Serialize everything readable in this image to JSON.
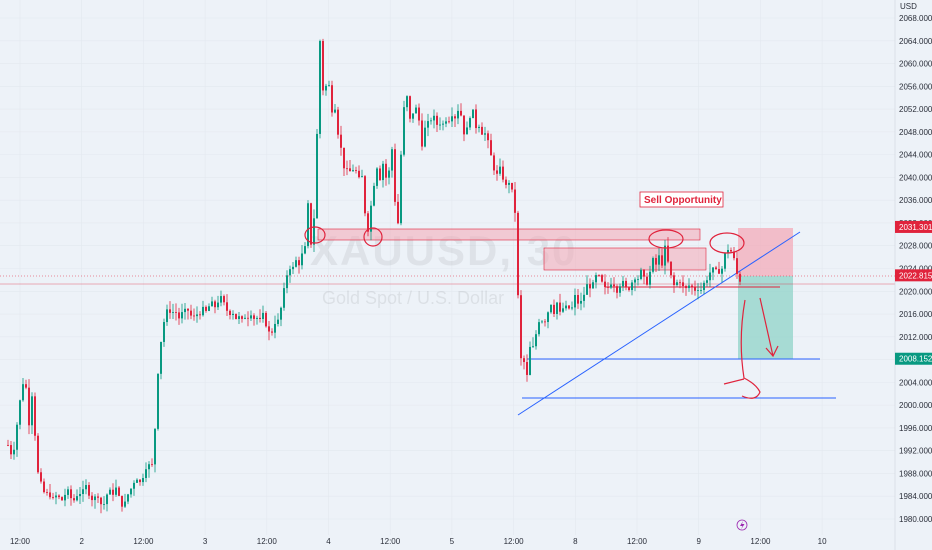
{
  "chart_data": {
    "type": "candlestick",
    "symbol": "XAUUSD, 30",
    "description": "Gold Spot / U.S. Dollar",
    "currency": "USD",
    "ylim": [
      1978,
      2069
    ],
    "y_ticks": [
      1980,
      1984,
      1988,
      1992,
      1996,
      2000,
      2004,
      2008,
      2012,
      2016,
      2020,
      2024,
      2028,
      2032,
      2036,
      2040,
      2044,
      2048,
      2052,
      2056,
      2060,
      2064,
      2068
    ],
    "y_tick_labels": [
      "1980.000",
      "1984.000",
      "1988.000",
      "1992.000",
      "1996.000",
      "2000.000",
      "2004.000",
      "2008.000",
      "2012.000",
      "2016.000",
      "2020.000",
      "2024.000",
      "2028.000",
      "2032.000",
      "2036.000",
      "2040.000",
      "2044.000",
      "2048.000",
      "2052.000",
      "2056.000",
      "2060.000",
      "2064.000",
      "2068.000"
    ],
    "x_tick_labels": [
      "12:00",
      "2",
      "12:00",
      "3",
      "12:00",
      "4",
      "12:00",
      "5",
      "12:00",
      "8",
      "12:00",
      "9",
      "12:00",
      "10"
    ],
    "price_badges": [
      {
        "label": "2031.301",
        "value": 2031.3,
        "color": "#e0233c"
      },
      {
        "label": "2022.815",
        "value": 2022.8,
        "color": "#e0233c"
      },
      {
        "label": "2008.152",
        "value": 2008.15,
        "color": "#089981"
      }
    ],
    "annotation": "Sell Opportunity",
    "bull_color": "#089981",
    "bear_color": "#e0233c",
    "zone_color": "#f4a7b5",
    "tp_color": "#8fd3c8",
    "line_color": "#2962ff",
    "path": [
      [
        0,
        1983
      ],
      [
        3,
        1986
      ],
      [
        6,
        1989
      ],
      [
        8,
        1993
      ],
      [
        10,
        1991
      ],
      [
        12,
        1995
      ],
      [
        15,
        1990
      ],
      [
        18,
        1994
      ],
      [
        21,
        1998
      ],
      [
        24,
        2002
      ],
      [
        26,
        2004
      ],
      [
        28,
        2006
      ],
      [
        30,
        2000
      ],
      [
        32,
        1997
      ],
      [
        34,
        2004
      ],
      [
        36,
        2000
      ],
      [
        38,
        1995
      ],
      [
        40,
        1990
      ],
      [
        42,
        1986
      ],
      [
        44,
        1986
      ],
      [
        46,
        1985
      ],
      [
        49,
        1984
      ],
      [
        52,
        1985
      ],
      [
        55,
        1983
      ],
      [
        58,
        1984
      ],
      [
        61,
        1984
      ],
      [
        64,
        1983
      ],
      [
        67,
        1984
      ],
      [
        70,
        1985
      ],
      [
        73,
        1984
      ],
      [
        76,
        1983
      ],
      [
        79,
        1984
      ],
      [
        82,
        1985
      ],
      [
        85,
        1984
      ],
      [
        88,
        1986
      ],
      [
        91,
        1985
      ],
      [
        94,
        1984
      ],
      [
        97,
        1983
      ],
      [
        100,
        1985
      ],
      [
        103,
        1983
      ],
      [
        106,
        1982
      ],
      [
        109,
        1984
      ],
      [
        112,
        1985
      ],
      [
        115,
        1984
      ],
      [
        118,
        1986
      ],
      [
        121,
        1984
      ],
      [
        124,
        1983
      ],
      [
        127,
        1982
      ],
      [
        130,
        1984
      ],
      [
        133,
        1985
      ],
      [
        136,
        1986
      ],
      [
        139,
        1988
      ],
      [
        142,
        1986
      ],
      [
        145,
        1987
      ],
      [
        148,
        1989
      ],
      [
        151,
        1990
      ],
      [
        154,
        1988
      ],
      [
        157,
        1992
      ],
      [
        159,
        2000
      ],
      [
        161,
        2006
      ],
      [
        163,
        2010
      ],
      [
        166,
        2014
      ],
      [
        169,
        2016
      ],
      [
        172,
        2017
      ],
      [
        175,
        2016
      ],
      [
        178,
        2017
      ],
      [
        181,
        2015
      ],
      [
        184,
        2016
      ],
      [
        187,
        2016
      ],
      [
        190,
        2017
      ],
      [
        193,
        2016
      ],
      [
        196,
        2015
      ],
      [
        199,
        2016
      ],
      [
        202,
        2016
      ],
      [
        205,
        2017
      ],
      [
        208,
        2016
      ],
      [
        211,
        2017
      ],
      [
        214,
        2018
      ],
      [
        217,
        2017
      ],
      [
        220,
        2018
      ],
      [
        223,
        2019
      ],
      [
        226,
        2018
      ],
      [
        229,
        2017
      ],
      [
        232,
        2016
      ],
      [
        235,
        2017
      ],
      [
        238,
        2015
      ],
      [
        241,
        2016
      ],
      [
        244,
        2014
      ],
      [
        247,
        2016
      ],
      [
        250,
        2015
      ],
      [
        253,
        2017
      ],
      [
        256,
        2015
      ],
      [
        259,
        2016
      ],
      [
        262,
        2014
      ],
      [
        265,
        2016
      ],
      [
        268,
        2015
      ],
      [
        271,
        2013
      ],
      [
        274,
        2012
      ],
      [
        277,
        2015
      ],
      [
        280,
        2014
      ],
      [
        283,
        2016
      ],
      [
        286,
        2019
      ],
      [
        289,
        2022
      ],
      [
        292,
        2025
      ],
      [
        295,
        2023
      ],
      [
        298,
        2026
      ],
      [
        301,
        2024
      ],
      [
        304,
        2027
      ],
      [
        307,
        2025
      ],
      [
        309,
        2030
      ],
      [
        311,
        2035
      ],
      [
        313,
        2031
      ],
      [
        315,
        2026
      ],
      [
        317,
        2033
      ],
      [
        319,
        2040
      ],
      [
        321,
        2055
      ],
      [
        323,
        2064
      ],
      [
        325,
        2058
      ],
      [
        327,
        2053
      ],
      [
        329,
        2056
      ],
      [
        331,
        2058
      ],
      [
        333,
        2054
      ],
      [
        335,
        2052
      ],
      [
        337,
        2055
      ],
      [
        339,
        2050
      ],
      [
        341,
        2048
      ],
      [
        343,
        2044
      ],
      [
        345,
        2046
      ],
      [
        347,
        2042
      ],
      [
        349,
        2039
      ],
      [
        351,
        2043
      ],
      [
        353,
        2041
      ],
      [
        355,
        2043
      ],
      [
        357,
        2040
      ],
      [
        359,
        2041
      ],
      [
        361,
        2037
      ],
      [
        363,
        2042
      ],
      [
        365,
        2040
      ],
      [
        367,
        2035
      ],
      [
        369,
        2033
      ],
      [
        371,
        2031
      ],
      [
        373,
        2034
      ],
      [
        375,
        2036
      ],
      [
        377,
        2039
      ],
      [
        379,
        2041
      ],
      [
        381,
        2043
      ],
      [
        383,
        2040
      ],
      [
        385,
        2044
      ],
      [
        387,
        2041
      ],
      [
        389,
        2040
      ],
      [
        391,
        2042
      ],
      [
        393,
        2040
      ],
      [
        395,
        2045
      ],
      [
        397,
        2038
      ],
      [
        399,
        2034
      ],
      [
        401,
        2032
      ],
      [
        403,
        2040
      ],
      [
        405,
        2048
      ],
      [
        407,
        2052
      ],
      [
        409,
        2056
      ],
      [
        411,
        2052
      ],
      [
        413,
        2050
      ],
      [
        415,
        2053
      ],
      [
        417,
        2050
      ],
      [
        419,
        2052
      ],
      [
        421,
        2049
      ],
      [
        423,
        2051
      ],
      [
        425,
        2046
      ],
      [
        427,
        2047
      ],
      [
        429,
        2050
      ],
      [
        432,
        2049
      ],
      [
        435,
        2051
      ],
      [
        438,
        2050
      ],
      [
        441,
        2049
      ],
      [
        444,
        2050
      ],
      [
        447,
        2049
      ],
      [
        450,
        2051
      ],
      [
        453,
        2050
      ],
      [
        456,
        2052
      ],
      [
        459,
        2050
      ],
      [
        462,
        2053
      ],
      [
        465,
        2050
      ],
      [
        468,
        2047
      ],
      [
        471,
        2049
      ],
      [
        474,
        2052
      ],
      [
        477,
        2051
      ],
      [
        480,
        2048
      ],
      [
        483,
        2050
      ],
      [
        486,
        2047
      ],
      [
        489,
        2048
      ],
      [
        492,
        2045
      ],
      [
        495,
        2043
      ],
      [
        498,
        2041
      ],
      [
        501,
        2040
      ],
      [
        504,
        2042
      ],
      [
        507,
        2039
      ],
      [
        510,
        2038
      ],
      [
        513,
        2040
      ],
      [
        516,
        2036
      ],
      [
        518,
        2034
      ],
      [
        520,
        2024
      ],
      [
        522,
        2014
      ],
      [
        524,
        2008
      ],
      [
        526,
        2006
      ],
      [
        528,
        2009
      ],
      [
        530,
        2005
      ],
      [
        532,
        2008
      ],
      [
        534,
        2012
      ],
      [
        536,
        2010
      ],
      [
        538,
        2013
      ],
      [
        540,
        2012
      ],
      [
        542,
        2015
      ],
      [
        544,
        2014
      ],
      [
        546,
        2016
      ],
      [
        548,
        2015
      ],
      [
        550,
        2017
      ],
      [
        552,
        2016
      ],
      [
        554,
        2018
      ],
      [
        556,
        2017
      ],
      [
        558,
        2016
      ],
      [
        560,
        2018
      ],
      [
        562,
        2017
      ],
      [
        564,
        2015
      ],
      [
        566,
        2017
      ],
      [
        568,
        2016
      ],
      [
        570,
        2018
      ],
      [
        572,
        2017
      ],
      [
        574,
        2016
      ],
      [
        576,
        2018
      ],
      [
        578,
        2019
      ],
      [
        580,
        2017
      ],
      [
        582,
        2019
      ],
      [
        584,
        2018
      ],
      [
        586,
        2020
      ],
      [
        588,
        2019
      ],
      [
        590,
        2021
      ],
      [
        592,
        2020
      ],
      [
        594,
        2022
      ],
      [
        596,
        2021
      ],
      [
        598,
        2022
      ],
      [
        600,
        2023
      ],
      [
        603,
        2022
      ],
      [
        606,
        2021
      ],
      [
        609,
        2020
      ],
      [
        612,
        2021
      ],
      [
        615,
        2022
      ],
      [
        618,
        2021
      ],
      [
        621,
        2020
      ],
      [
        624,
        2022
      ],
      [
        627,
        2021
      ],
      [
        630,
        2020
      ],
      [
        633,
        2021
      ],
      [
        636,
        2022
      ],
      [
        639,
        2023
      ],
      [
        642,
        2022
      ],
      [
        645,
        2024
      ],
      [
        648,
        2021
      ],
      [
        651,
        2022
      ],
      [
        654,
        2024
      ],
      [
        657,
        2026
      ],
      [
        660,
        2024
      ],
      [
        663,
        2027
      ],
      [
        665,
        2025
      ],
      [
        667,
        2028
      ],
      [
        669,
        2027
      ],
      [
        671,
        2025
      ],
      [
        673,
        2023
      ],
      [
        675,
        2022
      ],
      [
        677,
        2021
      ],
      [
        679,
        2022
      ],
      [
        681,
        2021
      ],
      [
        683,
        2022
      ],
      [
        685,
        2021
      ],
      [
        688,
        2020
      ],
      [
        691,
        2021
      ],
      [
        694,
        2021
      ],
      [
        697,
        2020
      ],
      [
        700,
        2021
      ],
      [
        703,
        2020
      ],
      [
        706,
        2021
      ],
      [
        709,
        2022
      ],
      [
        712,
        2023
      ],
      [
        715,
        2024
      ],
      [
        718,
        2023
      ],
      [
        721,
        2024
      ],
      [
        724,
        2023
      ],
      [
        727,
        2026
      ],
      [
        730,
        2027
      ],
      [
        732,
        2028
      ],
      [
        734,
        2027
      ],
      [
        736,
        2026
      ],
      [
        738,
        2025
      ],
      [
        740,
        2023
      ],
      [
        742,
        2022
      ]
    ]
  }
}
